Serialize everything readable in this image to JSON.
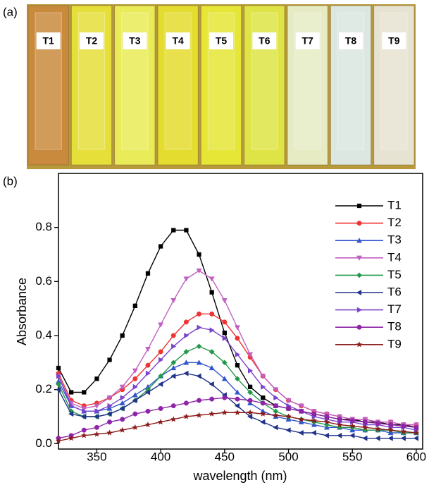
{
  "photo": {
    "label": "(a)",
    "background": "#b89a3c",
    "cuvettes": [
      {
        "label": "T1",
        "color": "#c98a3e"
      },
      {
        "label": "T2",
        "color": "#e6df3a"
      },
      {
        "label": "T3",
        "color": "#e9ec58"
      },
      {
        "label": "T4",
        "color": "#e4dc2e"
      },
      {
        "label": "T5",
        "color": "#e6e636"
      },
      {
        "label": "T6",
        "color": "#dfe446"
      },
      {
        "label": "T7",
        "color": "#e6ebc4"
      },
      {
        "label": "T8",
        "color": "#dbe7e0"
      },
      {
        "label": "T9",
        "color": "#e7e3d2"
      }
    ]
  },
  "chart_data": {
    "type": "line",
    "panel_label": "(b)",
    "x_label": "wavelength (nm)",
    "y_label": "Absorbance",
    "xlim": [
      320,
      605
    ],
    "ylim": [
      -0.02,
      1.0
    ],
    "xticks": [
      350,
      400,
      450,
      500,
      550,
      600
    ],
    "yticks": [
      {
        "value": 0,
        "label": "0.0"
      },
      0.2,
      0.4,
      0.6,
      0.8
    ],
    "legend": "upper right",
    "x": [
      320,
      330,
      340,
      350,
      360,
      370,
      380,
      390,
      400,
      410,
      420,
      430,
      440,
      450,
      460,
      470,
      480,
      490,
      500,
      510,
      520,
      530,
      540,
      550,
      560,
      570,
      580,
      590,
      600
    ],
    "series": [
      {
        "name": "T1",
        "color": "#000000",
        "marker": "square",
        "values": [
          0.28,
          0.19,
          0.19,
          0.24,
          0.31,
          0.4,
          0.51,
          0.63,
          0.73,
          0.79,
          0.79,
          0.7,
          0.56,
          0.41,
          0.29,
          0.21,
          0.17,
          0.14,
          0.13,
          0.12,
          0.11,
          0.1,
          0.09,
          0.09,
          0.08,
          0.08,
          0.07,
          0.07,
          0.06
        ]
      },
      {
        "name": "T2",
        "color": "#ee3333",
        "marker": "circle",
        "values": [
          0.26,
          0.16,
          0.14,
          0.15,
          0.17,
          0.2,
          0.24,
          0.29,
          0.34,
          0.4,
          0.45,
          0.48,
          0.48,
          0.45,
          0.39,
          0.32,
          0.25,
          0.2,
          0.16,
          0.14,
          0.12,
          0.11,
          0.1,
          0.09,
          0.09,
          0.08,
          0.08,
          0.07,
          0.07
        ]
      },
      {
        "name": "T3",
        "color": "#3355cc",
        "marker": "triangle-up",
        "values": [
          0.23,
          0.14,
          0.12,
          0.12,
          0.13,
          0.15,
          0.18,
          0.21,
          0.25,
          0.28,
          0.3,
          0.3,
          0.28,
          0.24,
          0.19,
          0.15,
          0.12,
          0.1,
          0.09,
          0.08,
          0.07,
          0.06,
          0.06,
          0.05,
          0.05,
          0.05,
          0.04,
          0.04,
          0.04
        ]
      },
      {
        "name": "T4",
        "color": "#c060c0",
        "marker": "triangle-down",
        "values": [
          0.25,
          0.15,
          0.13,
          0.14,
          0.17,
          0.21,
          0.27,
          0.35,
          0.44,
          0.53,
          0.61,
          0.64,
          0.61,
          0.53,
          0.43,
          0.33,
          0.25,
          0.2,
          0.16,
          0.14,
          0.12,
          0.11,
          0.1,
          0.09,
          0.09,
          0.08,
          0.08,
          0.07,
          0.07
        ]
      },
      {
        "name": "T5",
        "color": "#22994a",
        "marker": "diamond",
        "values": [
          0.22,
          0.12,
          0.1,
          0.1,
          0.11,
          0.13,
          0.16,
          0.2,
          0.25,
          0.3,
          0.34,
          0.36,
          0.34,
          0.3,
          0.24,
          0.19,
          0.15,
          0.12,
          0.1,
          0.09,
          0.08,
          0.07,
          0.06,
          0.06,
          0.05,
          0.05,
          0.05,
          0.04,
          0.04
        ]
      },
      {
        "name": "T6",
        "color": "#223388",
        "marker": "triangle-left",
        "values": [
          0.2,
          0.11,
          0.1,
          0.1,
          0.11,
          0.13,
          0.16,
          0.19,
          0.22,
          0.25,
          0.26,
          0.25,
          0.22,
          0.18,
          0.14,
          0.1,
          0.08,
          0.06,
          0.05,
          0.04,
          0.04,
          0.03,
          0.03,
          0.03,
          0.02,
          0.02,
          0.02,
          0.02,
          0.02
        ]
      },
      {
        "name": "T7",
        "color": "#7a44cc",
        "marker": "triangle-right",
        "values": [
          0.25,
          0.14,
          0.12,
          0.12,
          0.14,
          0.17,
          0.21,
          0.26,
          0.31,
          0.36,
          0.4,
          0.43,
          0.42,
          0.39,
          0.33,
          0.27,
          0.21,
          0.17,
          0.14,
          0.12,
          0.1,
          0.09,
          0.08,
          0.08,
          0.07,
          0.07,
          0.06,
          0.06,
          0.05
        ]
      },
      {
        "name": "T8",
        "color": "#8e24a8",
        "marker": "circle",
        "values": [
          0.02,
          0.03,
          0.05,
          0.06,
          0.08,
          0.09,
          0.11,
          0.12,
          0.13,
          0.14,
          0.15,
          0.16,
          0.165,
          0.17,
          0.165,
          0.16,
          0.15,
          0.14,
          0.13,
          0.12,
          0.11,
          0.1,
          0.09,
          0.085,
          0.08,
          0.075,
          0.07,
          0.065,
          0.06
        ]
      },
      {
        "name": "T9",
        "color": "#8b1a1a",
        "marker": "star",
        "values": [
          0.01,
          0.02,
          0.03,
          0.035,
          0.04,
          0.05,
          0.06,
          0.07,
          0.08,
          0.09,
          0.1,
          0.105,
          0.11,
          0.115,
          0.115,
          0.115,
          0.11,
          0.105,
          0.1,
          0.09,
          0.085,
          0.08,
          0.07,
          0.065,
          0.06,
          0.055,
          0.05,
          0.045,
          0.04
        ]
      }
    ]
  }
}
